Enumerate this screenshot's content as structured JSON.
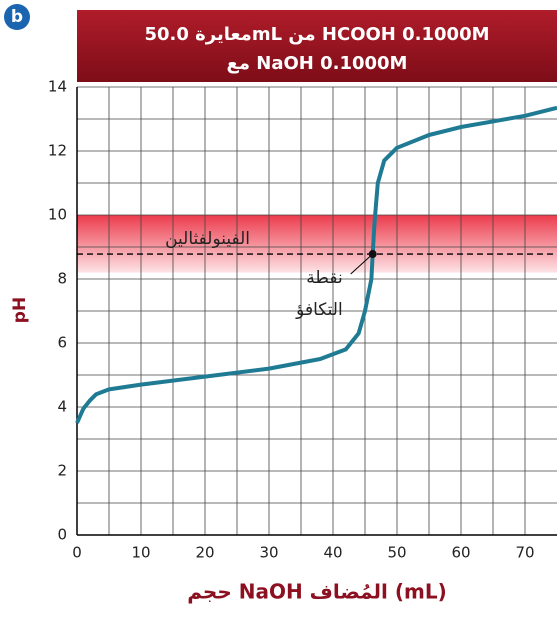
{
  "chart_data": {
    "type": "line",
    "badge": "b",
    "title_lines": [
      "معايرة 50.0mL من HCOOH 0.1000M",
      "مع NaOH 0.1000M"
    ],
    "xlabel": "حجم NaOH المُضاف (mL)",
    "ylabel": "pH",
    "xlim": [
      0,
      75
    ],
    "ylim": [
      0,
      14
    ],
    "xticks": [
      0,
      10,
      20,
      30,
      40,
      50,
      60,
      70
    ],
    "yticks": [
      0,
      2,
      4,
      6,
      8,
      10,
      12,
      14
    ],
    "grid": true,
    "series": [
      {
        "name": "pH",
        "color": "#1f7b94",
        "x": [
          0,
          1,
          2,
          3,
          5,
          10,
          20,
          30,
          38,
          42,
          44,
          45,
          46,
          46.2,
          46.5,
          47,
          48,
          50,
          55,
          60,
          70,
          75
        ],
        "values": [
          3.5,
          3.95,
          4.2,
          4.4,
          4.55,
          4.7,
          4.95,
          5.2,
          5.5,
          5.8,
          6.3,
          7.0,
          8.0,
          8.78,
          9.8,
          11.0,
          11.7,
          12.1,
          12.5,
          12.75,
          13.1,
          13.35
        ]
      }
    ],
    "indicator": {
      "label": "الفينولفثالين",
      "range": [
        8.2,
        10
      ]
    },
    "equivalence": {
      "label_lines": [
        "نقطة",
        "التكافؤ"
      ],
      "x": 46.2,
      "y": 8.78
    }
  }
}
